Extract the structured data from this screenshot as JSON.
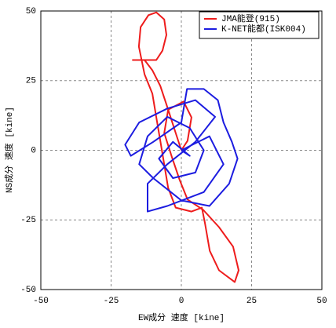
{
  "chart_data": {
    "type": "line",
    "x_label": "EW成分 速度 [kine]",
    "y_label": "NS成分 速度 [kine]",
    "xlim": [
      -50,
      50
    ],
    "ylim": [
      -50,
      50
    ],
    "xticks": [
      -50,
      -25,
      0,
      25,
      50
    ],
    "yticks": [
      -50,
      -25,
      0,
      25,
      50
    ],
    "grid": true,
    "legend": "upper right",
    "series": [
      {
        "name": "JMA能登(915)",
        "color": "#ee1c1c",
        "x": [
          0,
          -2.0,
          -4.7,
          -7.5,
          -10.3,
          -13.1,
          -17.3,
          -8.9,
          -6.7,
          -5.3,
          -6.1,
          -8.9,
          -11.7,
          -14.5,
          -15.1,
          -13.1,
          -10.3,
          -8.9,
          -7.5,
          -6.1,
          -4.7,
          -2.0,
          3.6,
          7.3,
          8.4,
          10.1,
          13.4,
          19.0,
          20.4,
          18.4,
          13.4,
          7.8,
          2.2,
          -0.6,
          -3.4,
          -6.1,
          -4.7,
          0.8,
          3.6,
          2.2,
          0
        ],
        "values": [
          0,
          6.2,
          14.6,
          23.1,
          28.7,
          32.4,
          32.4,
          32.4,
          35.8,
          41.4,
          47.0,
          49.5,
          48.5,
          44.2,
          37.2,
          27.3,
          20.3,
          11.8,
          3.4,
          -5.1,
          -13.5,
          -20.6,
          -22,
          -20.6,
          -26.2,
          -36.1,
          -43.1,
          -47.3,
          -43.1,
          -34.6,
          -27.6,
          -21.4,
          -17.7,
          -10.7,
          -2.3,
          6.2,
          14.6,
          17.5,
          11.8,
          3.4,
          0
        ]
      },
      {
        "name": "K-NET能都(ISK004)",
        "color": "#1c1ce0",
        "x": [
          0,
          10,
          15,
          8,
          -5,
          -12,
          -12,
          -5,
          5,
          12,
          5,
          -5,
          -15,
          -20,
          -18,
          -10,
          0,
          2,
          8,
          13,
          15,
          18,
          20,
          17,
          10,
          0,
          -10,
          -15,
          -12,
          -5,
          3,
          8,
          5,
          -3,
          -8,
          -3,
          3,
          0
        ],
        "values": [
          0,
          5,
          -5,
          -15,
          -20,
          -22,
          -12,
          -5,
          3,
          12,
          18,
          15,
          10,
          2,
          -2,
          3,
          10,
          22,
          22,
          18,
          10,
          3,
          -3,
          -12,
          -20,
          -18,
          -10,
          -5,
          5,
          12,
          8,
          0,
          -8,
          -10,
          -3,
          3,
          -2,
          0
        ]
      }
    ]
  }
}
